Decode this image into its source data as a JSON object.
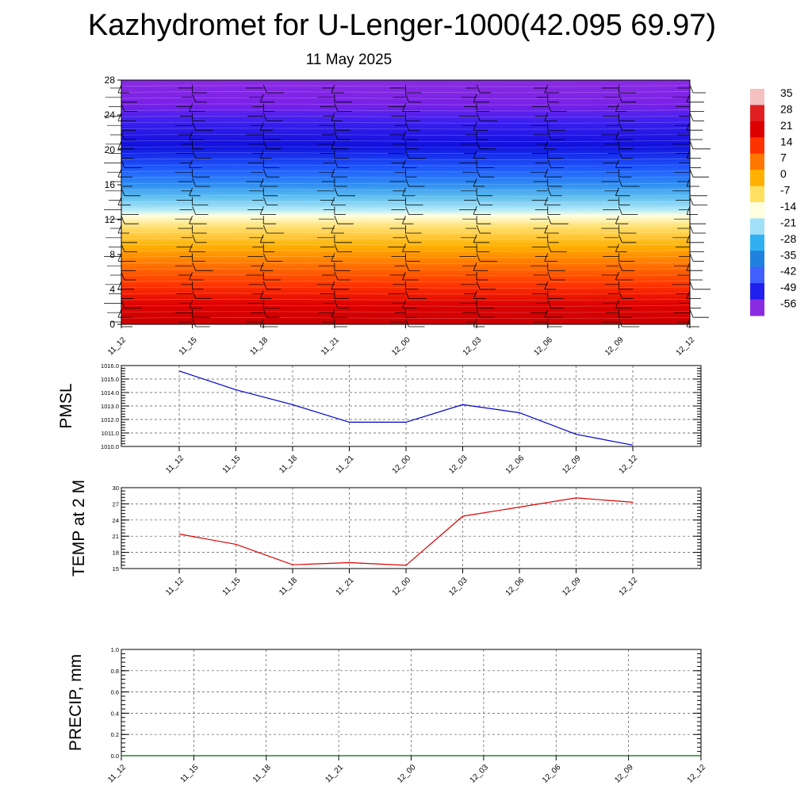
{
  "title": "Kazhydromet for U-Lenger-1000(42.095 69.97)",
  "date": "11 May 2025",
  "colors": {
    "pmsl_line": "#0000cc",
    "temp_line": "#dd0000",
    "precip_line": "#006600",
    "barb": "#000000",
    "band_top": "#8a2be2",
    "band_mid": "#ffffe0",
    "band_bottom": "#dd0000"
  },
  "chart_data": [
    {
      "id": "upper_air",
      "type": "heatmap",
      "x_labels": [
        "11_12",
        "11_15",
        "11_18",
        "11_21",
        "12_00",
        "12_03",
        "12_06",
        "12_09",
        "12_12"
      ],
      "y_ticks": [
        0,
        4,
        8,
        12,
        16,
        20,
        24,
        28
      ],
      "ylim": [
        0,
        28
      ],
      "colorbar": {
        "labels": [
          "35",
          "28",
          "21",
          "14",
          "7",
          "0",
          "-7",
          "-14",
          "-21",
          "-28",
          "-35",
          "-42",
          "-49",
          "-56"
        ],
        "colors": [
          "#f5c0c0",
          "#e02020",
          "#dd0000",
          "#ff3300",
          "#ff7700",
          "#ffb000",
          "#ffe060",
          "#ffffe0",
          "#a0e0f8",
          "#30b0f0",
          "#2080e0",
          "#4060ff",
          "#2020ee",
          "#8a2be2"
        ]
      },
      "wind_barbs": true
    },
    {
      "id": "pmsl",
      "type": "line",
      "ylabel": "PMSL",
      "x": [
        "11_12",
        "11_15",
        "11_18",
        "11_21",
        "12_00",
        "12_03",
        "12_06",
        "12_09",
        "12_12"
      ],
      "y_ticks": [
        "1010.0",
        "1011.0",
        "1012.0",
        "1013.0",
        "1014.0",
        "1015.0",
        "1016.0"
      ],
      "ylim": [
        1010,
        1016
      ],
      "series": [
        {
          "values": [
            1015.6,
            1014.2,
            1013.1,
            1011.8,
            1011.8,
            1013.1,
            1012.5,
            1010.9,
            1010.1
          ]
        }
      ],
      "grid": true
    },
    {
      "id": "temp",
      "type": "line",
      "ylabel": "TEMP at 2 M",
      "x": [
        "11_12",
        "11_15",
        "11_18",
        "11_21",
        "12_00",
        "12_03",
        "12_06",
        "12_09",
        "12_12"
      ],
      "y_ticks": [
        "15",
        "18",
        "21",
        "24",
        "27",
        "30"
      ],
      "ylim": [
        15,
        30
      ],
      "series": [
        {
          "values": [
            21.4,
            19.5,
            15.7,
            16.1,
            15.6,
            24.7,
            26.4,
            28.1,
            27.3
          ]
        }
      ],
      "grid": true
    },
    {
      "id": "precip",
      "type": "line",
      "ylabel": "PRECIP, mm",
      "x": [
        "11_12",
        "11_15",
        "11_18",
        "11_21",
        "12_00",
        "12_03",
        "12_06",
        "12_09",
        "12_12"
      ],
      "y_ticks": [
        "0.0",
        "0.2",
        "0.4",
        "0.6",
        "0.8",
        "1.0"
      ],
      "ylim": [
        0,
        1
      ],
      "series": [
        {
          "values": [
            0,
            0,
            0,
            0,
            0,
            0,
            0,
            0,
            0
          ]
        }
      ],
      "grid": true
    }
  ]
}
